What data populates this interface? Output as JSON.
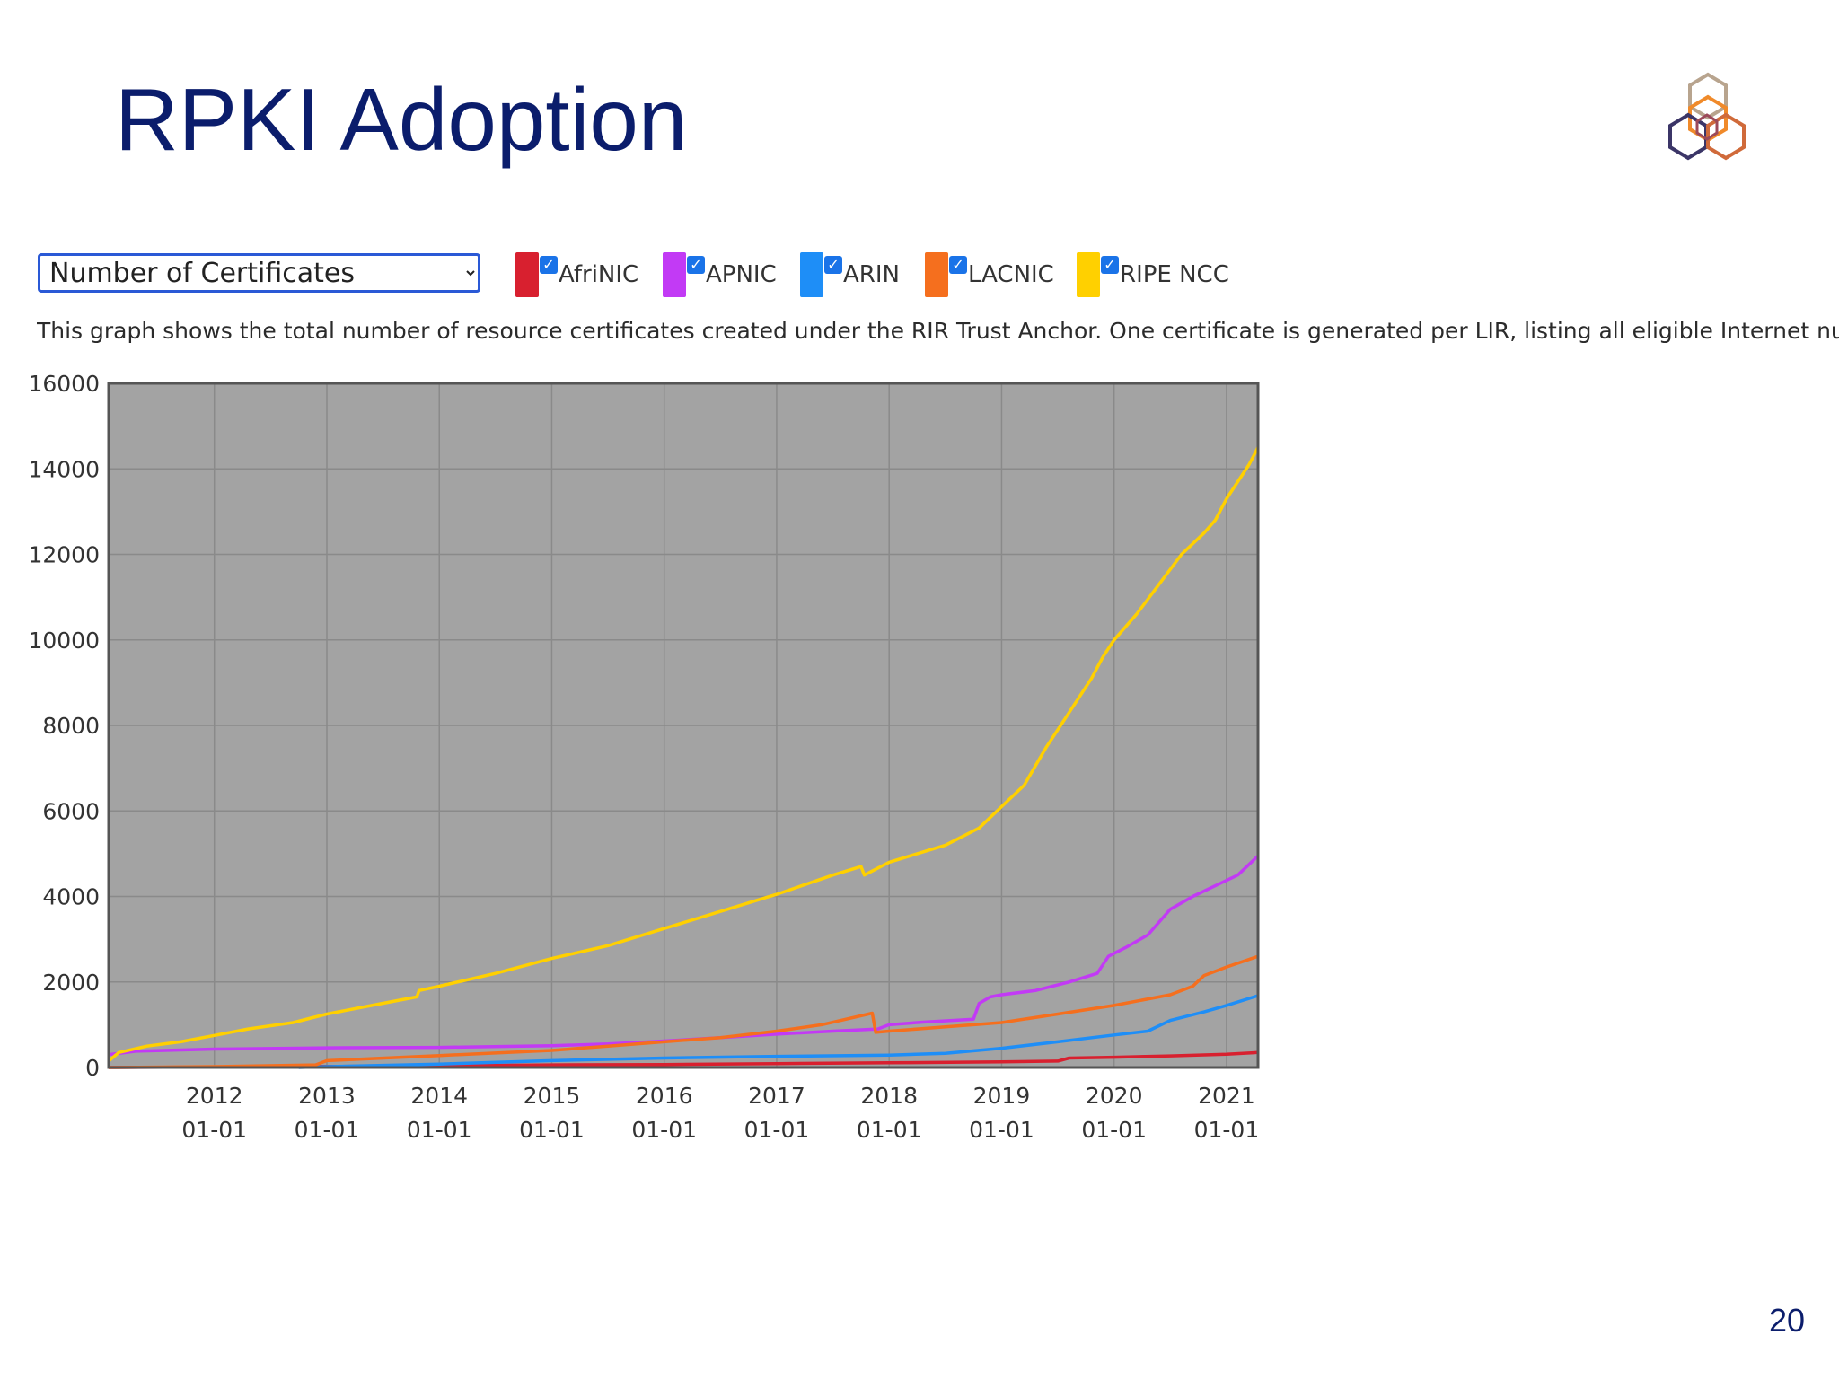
{
  "slide": {
    "title": "RPKI Adoption",
    "page_number": "20"
  },
  "controls": {
    "metric_select": "Number of Certificates",
    "legend": [
      {
        "label": "AfriNIC",
        "color": "#d8202f",
        "checked": true
      },
      {
        "label": "APNIC",
        "color": "#c23af5",
        "checked": true
      },
      {
        "label": "ARIN",
        "color": "#1e8ef7",
        "checked": true
      },
      {
        "label": "LACNIC",
        "color": "#f56f1e",
        "checked": true
      },
      {
        "label": "RIPE NCC",
        "color": "#ffd000",
        "checked": true
      }
    ]
  },
  "description": "This graph shows the total number of resource certificates created under the RIR Trust Anchor. One certificate is generated per LIR, listing all eligible Internet number resources",
  "chart_data": {
    "type": "line",
    "ylim": [
      0,
      16000
    ],
    "y_ticks": [
      0,
      2000,
      4000,
      6000,
      8000,
      10000,
      12000,
      14000,
      16000
    ],
    "xlim": [
      2011.06,
      2021.28
    ],
    "x_ticks": [
      {
        "year": 2012,
        "top": "2012",
        "bottom": "01-01"
      },
      {
        "year": 2013,
        "top": "2013",
        "bottom": "01-01"
      },
      {
        "year": 2014,
        "top": "2014",
        "bottom": "01-01"
      },
      {
        "year": 2015,
        "top": "2015",
        "bottom": "01-01"
      },
      {
        "year": 2016,
        "top": "2016",
        "bottom": "01-01"
      },
      {
        "year": 2017,
        "top": "2017",
        "bottom": "01-01"
      },
      {
        "year": 2018,
        "top": "2018",
        "bottom": "01-01"
      },
      {
        "year": 2019,
        "top": "2019",
        "bottom": "01-01"
      },
      {
        "year": 2020,
        "top": "2020",
        "bottom": "01-01"
      },
      {
        "year": 2021,
        "top": "2021",
        "bottom": "01-01"
      }
    ],
    "grid": true,
    "background": "#a3a3a3",
    "series": [
      {
        "name": "AfriNIC",
        "color": "#d8202f",
        "points": [
          [
            2011.06,
            0
          ],
          [
            2012,
            10
          ],
          [
            2013,
            25
          ],
          [
            2014,
            40
          ],
          [
            2015,
            60
          ],
          [
            2016,
            70
          ],
          [
            2017,
            90
          ],
          [
            2018,
            110
          ],
          [
            2019,
            130
          ],
          [
            2019.5,
            150
          ],
          [
            2019.6,
            220
          ],
          [
            2020,
            240
          ],
          [
            2020.5,
            270
          ],
          [
            2021,
            310
          ],
          [
            2021.28,
            350
          ]
        ]
      },
      {
        "name": "APNIC",
        "color": "#c23af5",
        "points": [
          [
            2011.06,
            300
          ],
          [
            2011.3,
            380
          ],
          [
            2012,
            430
          ],
          [
            2013,
            460
          ],
          [
            2014,
            470
          ],
          [
            2015,
            510
          ],
          [
            2015.5,
            550
          ],
          [
            2016,
            620
          ],
          [
            2016.5,
            700
          ],
          [
            2017,
            780
          ],
          [
            2017.5,
            850
          ],
          [
            2017.9,
            900
          ],
          [
            2018,
            1000
          ],
          [
            2018.3,
            1060
          ],
          [
            2018.75,
            1130
          ],
          [
            2018.8,
            1500
          ],
          [
            2018.9,
            1650
          ],
          [
            2019,
            1700
          ],
          [
            2019.3,
            1800
          ],
          [
            2019.6,
            2000
          ],
          [
            2019.85,
            2200
          ],
          [
            2019.95,
            2600
          ],
          [
            2020.1,
            2800
          ],
          [
            2020.3,
            3100
          ],
          [
            2020.5,
            3700
          ],
          [
            2020.7,
            4000
          ],
          [
            2020.9,
            4250
          ],
          [
            2021.1,
            4500
          ],
          [
            2021.28,
            4950
          ]
        ]
      },
      {
        "name": "ARIN",
        "color": "#1e8ef7",
        "points": [
          [
            2012.75,
            0
          ],
          [
            2013,
            20
          ],
          [
            2014,
            80
          ],
          [
            2015,
            160
          ],
          [
            2016,
            220
          ],
          [
            2017,
            260
          ],
          [
            2018,
            290
          ],
          [
            2018.5,
            330
          ],
          [
            2019,
            450
          ],
          [
            2019.5,
            600
          ],
          [
            2020,
            760
          ],
          [
            2020.3,
            850
          ],
          [
            2020.5,
            1100
          ],
          [
            2020.8,
            1300
          ],
          [
            2021,
            1450
          ],
          [
            2021.28,
            1680
          ]
        ]
      },
      {
        "name": "LACNIC",
        "color": "#f56f1e",
        "points": [
          [
            2011.06,
            0
          ],
          [
            2012,
            20
          ],
          [
            2012.9,
            60
          ],
          [
            2013,
            160
          ],
          [
            2014,
            280
          ],
          [
            2015,
            400
          ],
          [
            2015.5,
            500
          ],
          [
            2016,
            600
          ],
          [
            2016.5,
            700
          ],
          [
            2017,
            850
          ],
          [
            2017.4,
            1000
          ],
          [
            2017.85,
            1270
          ],
          [
            2017.88,
            820
          ],
          [
            2018,
            850
          ],
          [
            2018.5,
            950
          ],
          [
            2019,
            1050
          ],
          [
            2019.5,
            1250
          ],
          [
            2020,
            1450
          ],
          [
            2020.5,
            1700
          ],
          [
            2020.7,
            1900
          ],
          [
            2020.8,
            2150
          ],
          [
            2021,
            2350
          ],
          [
            2021.28,
            2600
          ]
        ]
      },
      {
        "name": "RIPE NCC",
        "color": "#ffd000",
        "points": [
          [
            2011.06,
            150
          ],
          [
            2011.15,
            350
          ],
          [
            2011.4,
            500
          ],
          [
            2011.7,
            600
          ],
          [
            2012,
            750
          ],
          [
            2012.3,
            900
          ],
          [
            2012.7,
            1050
          ],
          [
            2013,
            1250
          ],
          [
            2013.4,
            1450
          ],
          [
            2013.8,
            1650
          ],
          [
            2013.82,
            1800
          ],
          [
            2014,
            1900
          ],
          [
            2014.5,
            2200
          ],
          [
            2015,
            2550
          ],
          [
            2015.5,
            2850
          ],
          [
            2016,
            3250
          ],
          [
            2016.5,
            3650
          ],
          [
            2017,
            4050
          ],
          [
            2017.5,
            4500
          ],
          [
            2017.75,
            4700
          ],
          [
            2017.78,
            4500
          ],
          [
            2018,
            4800
          ],
          [
            2018.5,
            5200
          ],
          [
            2018.8,
            5600
          ],
          [
            2019,
            6100
          ],
          [
            2019.2,
            6600
          ],
          [
            2019.4,
            7500
          ],
          [
            2019.6,
            8300
          ],
          [
            2019.8,
            9100
          ],
          [
            2019.9,
            9600
          ],
          [
            2020,
            10000
          ],
          [
            2020.2,
            10600
          ],
          [
            2020.4,
            11300
          ],
          [
            2020.6,
            12000
          ],
          [
            2020.8,
            12500
          ],
          [
            2020.9,
            12800
          ],
          [
            2021,
            13300
          ],
          [
            2021.1,
            13700
          ],
          [
            2021.2,
            14100
          ],
          [
            2021.28,
            14500
          ]
        ]
      }
    ]
  }
}
